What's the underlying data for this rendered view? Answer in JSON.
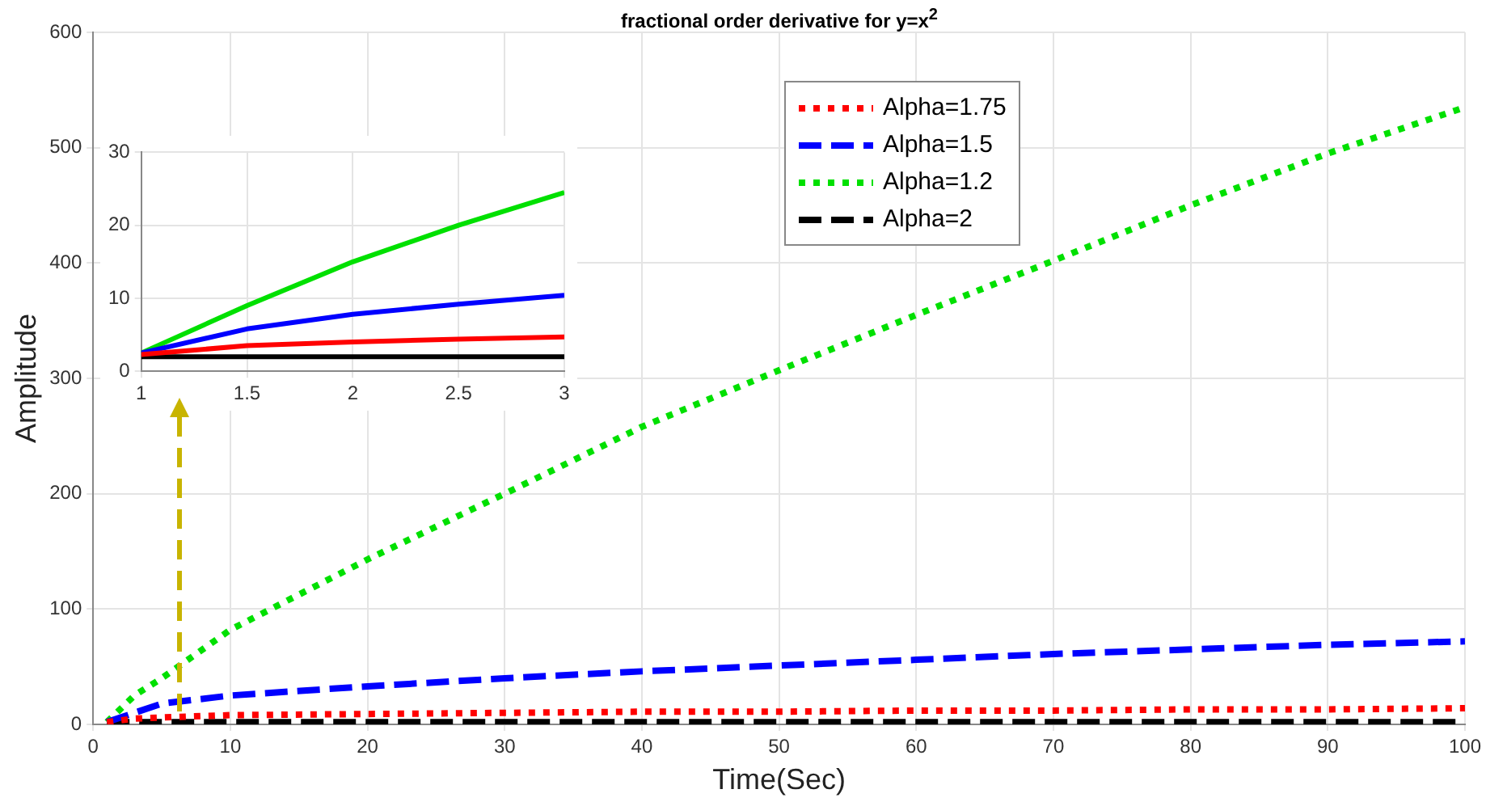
{
  "chart_data": [
    {
      "type": "line",
      "title": "fractional order derivative for y=x$^{2}$",
      "xlabel": "Time(Sec)",
      "ylabel": "Amplitude",
      "x": [
        1,
        3,
        5,
        10,
        20,
        30,
        40,
        50,
        60,
        70,
        80,
        90,
        100
      ],
      "series": [
        {
          "name": "Alpha=1.75",
          "color": "#ff0000",
          "line_style": "dotted",
          "values": [
            2,
            5,
            6,
            8,
            9,
            10,
            11,
            11,
            12,
            12,
            13,
            13,
            14
          ]
        },
        {
          "name": "Alpha=1.5",
          "color": "#0000ff",
          "line_style": "dashed",
          "values": [
            2,
            10,
            18,
            25,
            33,
            40,
            46,
            51,
            56,
            61,
            65,
            69,
            72
          ]
        },
        {
          "name": "Alpha=1.2",
          "color": "#00e000",
          "line_style": "dotted",
          "values": [
            2,
            25,
            40,
            82,
            143,
            200,
            258,
            307,
            355,
            402,
            450,
            495,
            535
          ]
        },
        {
          "name": "Alpha=2",
          "color": "#000000",
          "line_style": "dashed",
          "values": [
            2,
            2,
            2,
            2,
            2,
            2,
            2,
            2,
            2,
            2,
            2,
            2,
            2
          ]
        }
      ],
      "xlim": [
        0,
        100
      ],
      "xticks": [
        0,
        10,
        20,
        30,
        40,
        50,
        60,
        70,
        80,
        90,
        100
      ],
      "ylim": [
        0,
        600
      ],
      "yticks": [
        0,
        100,
        200,
        300,
        400,
        500,
        600
      ],
      "grid": true,
      "legend": "top",
      "marker": "none"
    },
    {
      "type": "line",
      "x": [
        1,
        1.5,
        2,
        2.5,
        3
      ],
      "series": [
        {
          "color": "#ff0000",
          "values": [
            2.3,
            3.5,
            4,
            4.4,
            4.7
          ]
        },
        {
          "color": "#0000ff",
          "values": [
            2.5,
            5.8,
            7.8,
            9.2,
            10.4
          ]
        },
        {
          "color": "#00e000",
          "values": [
            2.5,
            9,
            15,
            20,
            24.5
          ]
        },
        {
          "color": "#000000",
          "values": [
            2,
            2,
            2,
            2,
            2
          ]
        }
      ],
      "xlim": [
        1,
        3
      ],
      "xticks": [
        1,
        1.5,
        2,
        2.5,
        3
      ],
      "ylim": [
        0,
        30
      ],
      "yticks": [
        0,
        10,
        20,
        30
      ],
      "grid": true,
      "line_style": "solid",
      "marker": "none"
    }
  ]
}
